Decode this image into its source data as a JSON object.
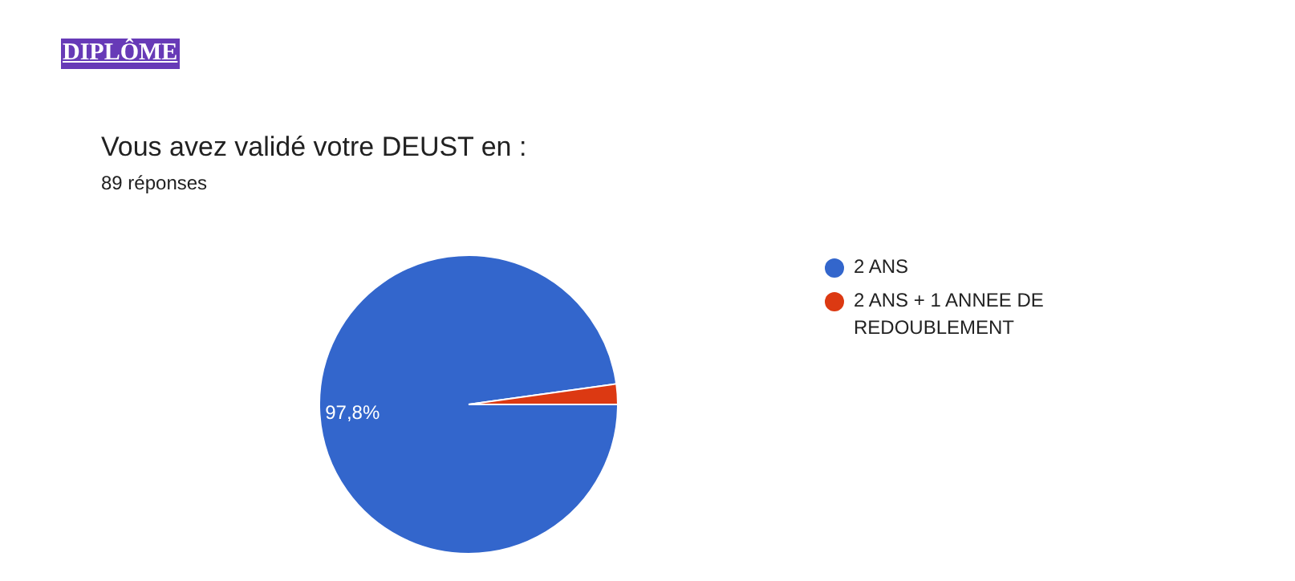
{
  "chart_data": {
    "type": "pie",
    "title": "Vous avez validé votre DEUST en :",
    "subtitle": "89 réponses",
    "annotations": [
      "DIPLÔME"
    ],
    "categories": [
      "2 ANS",
      "2 ANS + 1 ANNEE DE REDOUBLEMENT"
    ],
    "values": [
      97.8,
      2.2
    ],
    "colors": [
      "#3366cc",
      "#dc3912"
    ],
    "value_labels": [
      "97,8%",
      null
    ],
    "legend": "right"
  }
}
